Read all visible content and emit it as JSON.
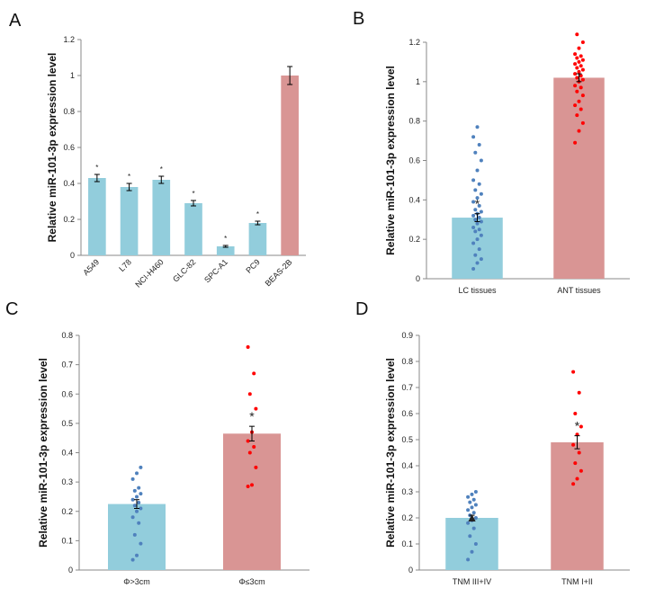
{
  "chart_data": [
    {
      "panel": "A",
      "type": "bar",
      "ylabel": "Relative miR-101-3p expression level",
      "ylim": [
        0,
        1.2
      ],
      "yticks": [
        0,
        0.2,
        0.4,
        0.6,
        0.8,
        1,
        1.2
      ],
      "categories": [
        "A549",
        "L78",
        "NCI-H460",
        "GLC-82",
        "SPC-A1",
        "PC9",
        "BEAS-2B"
      ],
      "values": [
        0.43,
        0.38,
        0.42,
        0.29,
        0.05,
        0.18,
        1.0
      ],
      "errors": [
        0.02,
        0.02,
        0.02,
        0.015,
        0.005,
        0.01,
        0.05
      ],
      "significance": [
        "*",
        "*",
        "*",
        "*",
        "*",
        "*",
        ""
      ],
      "bar_colors": [
        "#92CDDC",
        "#92CDDC",
        "#92CDDC",
        "#92CDDC",
        "#92CDDC",
        "#92CDDC",
        "#D99594"
      ],
      "grid": false
    },
    {
      "panel": "B",
      "type": "bar",
      "ylabel": "Relative miR-101-3p expression level",
      "ylim": [
        0,
        1.2
      ],
      "yticks": [
        0,
        0.2,
        0.4,
        0.6,
        0.8,
        1,
        1.2
      ],
      "categories": [
        "LC tissues",
        "ANT tissues"
      ],
      "values": [
        0.31,
        1.02
      ],
      "errors": [
        0.02,
        0.02
      ],
      "significance": [
        "*",
        ""
      ],
      "bar_colors": [
        "#92CDDC",
        "#D99594"
      ],
      "point_colors": [
        "#4F81BD",
        "#FF0000"
      ],
      "points": [
        [
          0.05,
          0.08,
          0.1,
          0.12,
          0.15,
          0.18,
          0.2,
          0.22,
          0.24,
          0.25,
          0.26,
          0.28,
          0.29,
          0.3,
          0.31,
          0.32,
          0.33,
          0.34,
          0.35,
          0.37,
          0.39,
          0.41,
          0.43,
          0.45,
          0.48,
          0.5,
          0.55,
          0.6,
          0.64,
          0.68,
          0.72,
          0.77
        ],
        [
          0.69,
          0.75,
          0.79,
          0.83,
          0.86,
          0.88,
          0.9,
          0.93,
          0.95,
          0.97,
          0.98,
          1.0,
          1.01,
          1.02,
          1.03,
          1.04,
          1.05,
          1.06,
          1.07,
          1.08,
          1.09,
          1.1,
          1.11,
          1.12,
          1.13,
          1.14,
          1.17,
          1.2,
          1.24
        ]
      ],
      "grid": false
    },
    {
      "panel": "C",
      "type": "bar",
      "ylabel": "Relative miR-101-3p expression level",
      "ylim": [
        0,
        0.8
      ],
      "yticks": [
        0,
        0.1,
        0.2,
        0.3,
        0.4,
        0.5,
        0.6,
        0.7,
        0.8
      ],
      "categories": [
        "Φ>3cm",
        "Φ≤3cm"
      ],
      "values": [
        0.225,
        0.465
      ],
      "errors": [
        0.015,
        0.025
      ],
      "significance": [
        "",
        "*"
      ],
      "bar_colors": [
        "#92CDDC",
        "#D99594"
      ],
      "point_colors": [
        "#4F81BD",
        "#FF0000"
      ],
      "points": [
        [
          0.035,
          0.05,
          0.09,
          0.12,
          0.16,
          0.18,
          0.2,
          0.21,
          0.22,
          0.23,
          0.24,
          0.25,
          0.26,
          0.27,
          0.28,
          0.31,
          0.33,
          0.35
        ],
        [
          0.285,
          0.29,
          0.35,
          0.4,
          0.42,
          0.44,
          0.47,
          0.55,
          0.6,
          0.67,
          0.76
        ]
      ],
      "grid": false
    },
    {
      "panel": "D",
      "type": "bar",
      "ylabel": "Relative miR-101-3p expression level",
      "ylim": [
        0,
        0.9
      ],
      "yticks": [
        0,
        0.1,
        0.2,
        0.3,
        0.4,
        0.5,
        0.6,
        0.7,
        0.8,
        0.9
      ],
      "categories": [
        "TNM III+IV",
        "TNM I+II"
      ],
      "values": [
        0.2,
        0.49
      ],
      "errors": [
        0.01,
        0.025
      ],
      "significance": [
        "▲",
        "*"
      ],
      "bar_colors": [
        "#92CDDC",
        "#D99594"
      ],
      "point_colors": [
        "#4F81BD",
        "#FF0000"
      ],
      "points": [
        [
          0.04,
          0.07,
          0.1,
          0.13,
          0.16,
          0.18,
          0.19,
          0.2,
          0.21,
          0.22,
          0.23,
          0.24,
          0.25,
          0.26,
          0.27,
          0.28,
          0.29,
          0.3
        ],
        [
          0.33,
          0.35,
          0.38,
          0.41,
          0.45,
          0.48,
          0.52,
          0.55,
          0.6,
          0.68,
          0.76
        ]
      ],
      "grid": false
    }
  ],
  "panel_letters": [
    "A",
    "B",
    "C",
    "D"
  ]
}
